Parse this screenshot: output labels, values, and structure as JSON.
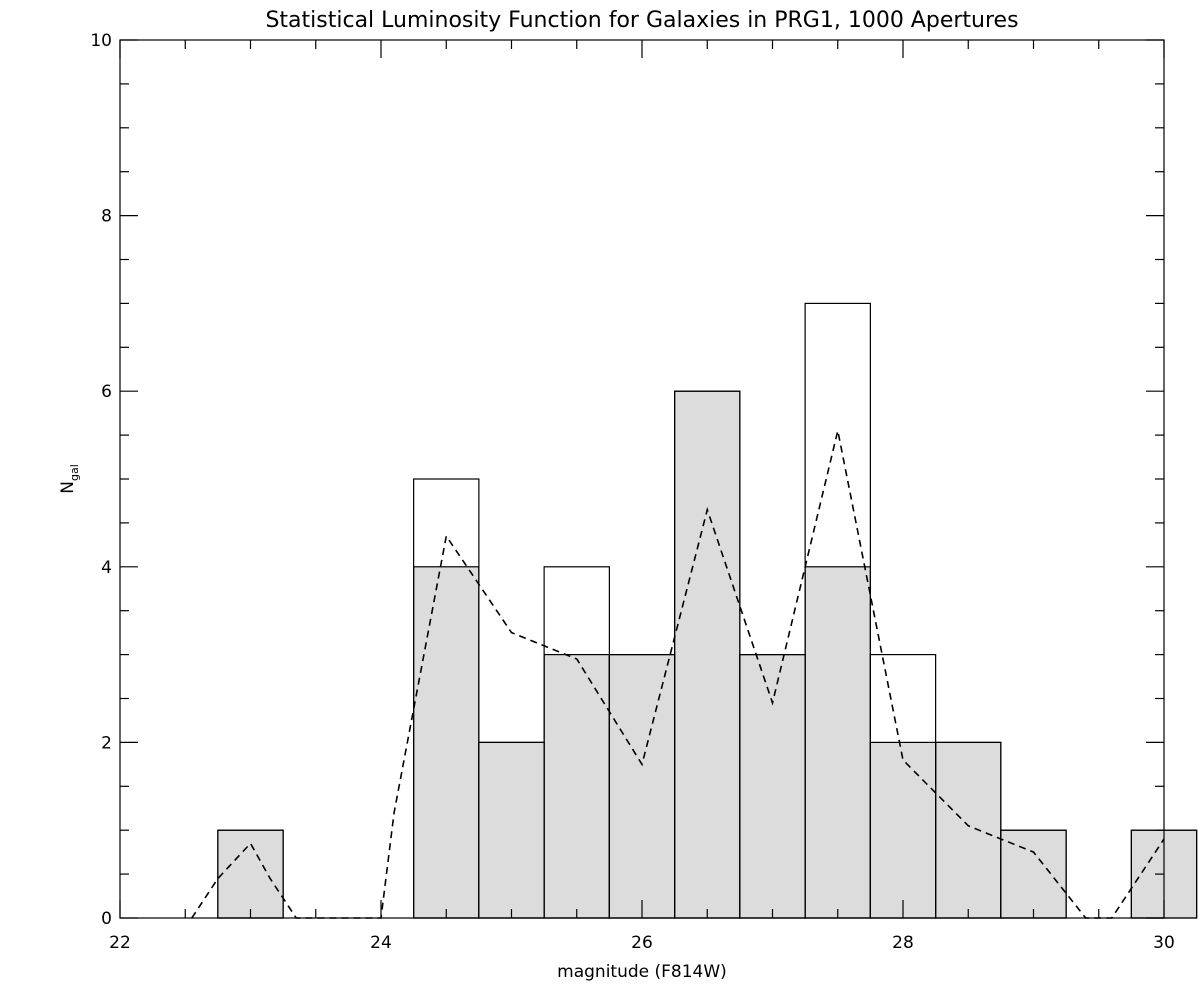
{
  "chart_data": {
    "type": "bar",
    "title": "Statistical Luminosity Function for Galaxies in PRG1, 1000 Apertures",
    "xlabel": "magnitude (F814W)",
    "ylabel_main": "N",
    "ylabel_sub": "gal",
    "xlim": [
      22,
      30
    ],
    "ylim": [
      0,
      10
    ],
    "x_ticks": [
      "22",
      "24",
      "26",
      "28",
      "30"
    ],
    "y_ticks": [
      "0",
      "2",
      "4",
      "6",
      "8",
      "10"
    ],
    "bin_width": 0.5,
    "bin_centers": [
      23.0,
      24.5,
      25.0,
      25.5,
      26.0,
      26.5,
      27.0,
      27.5,
      28.0,
      28.5,
      29.0,
      30.0
    ],
    "series": [
      {
        "style": "outline",
        "values": [
          1,
          5,
          2,
          4,
          3,
          6,
          3,
          7,
          3,
          2,
          1,
          1
        ]
      },
      {
        "style": "filled",
        "color": "#dcdcdc",
        "values": [
          1,
          4,
          2,
          3,
          3,
          6,
          3,
          4,
          2,
          2,
          1,
          1
        ]
      },
      {
        "style": "dashed-line",
        "x": [
          22.55,
          22.75,
          23.0,
          23.15,
          23.35,
          24.0,
          24.1,
          24.5,
          25.0,
          25.5,
          26.0,
          26.5,
          27.0,
          27.5,
          28.0,
          28.5,
          29.0,
          29.4,
          29.6,
          30.0
        ],
        "y": [
          0,
          0.45,
          0.85,
          0.45,
          0,
          0,
          1.2,
          4.35,
          3.25,
          2.95,
          1.75,
          4.65,
          2.45,
          5.55,
          1.8,
          1.05,
          0.75,
          0,
          0,
          0.9
        ]
      }
    ],
    "grid": false
  }
}
